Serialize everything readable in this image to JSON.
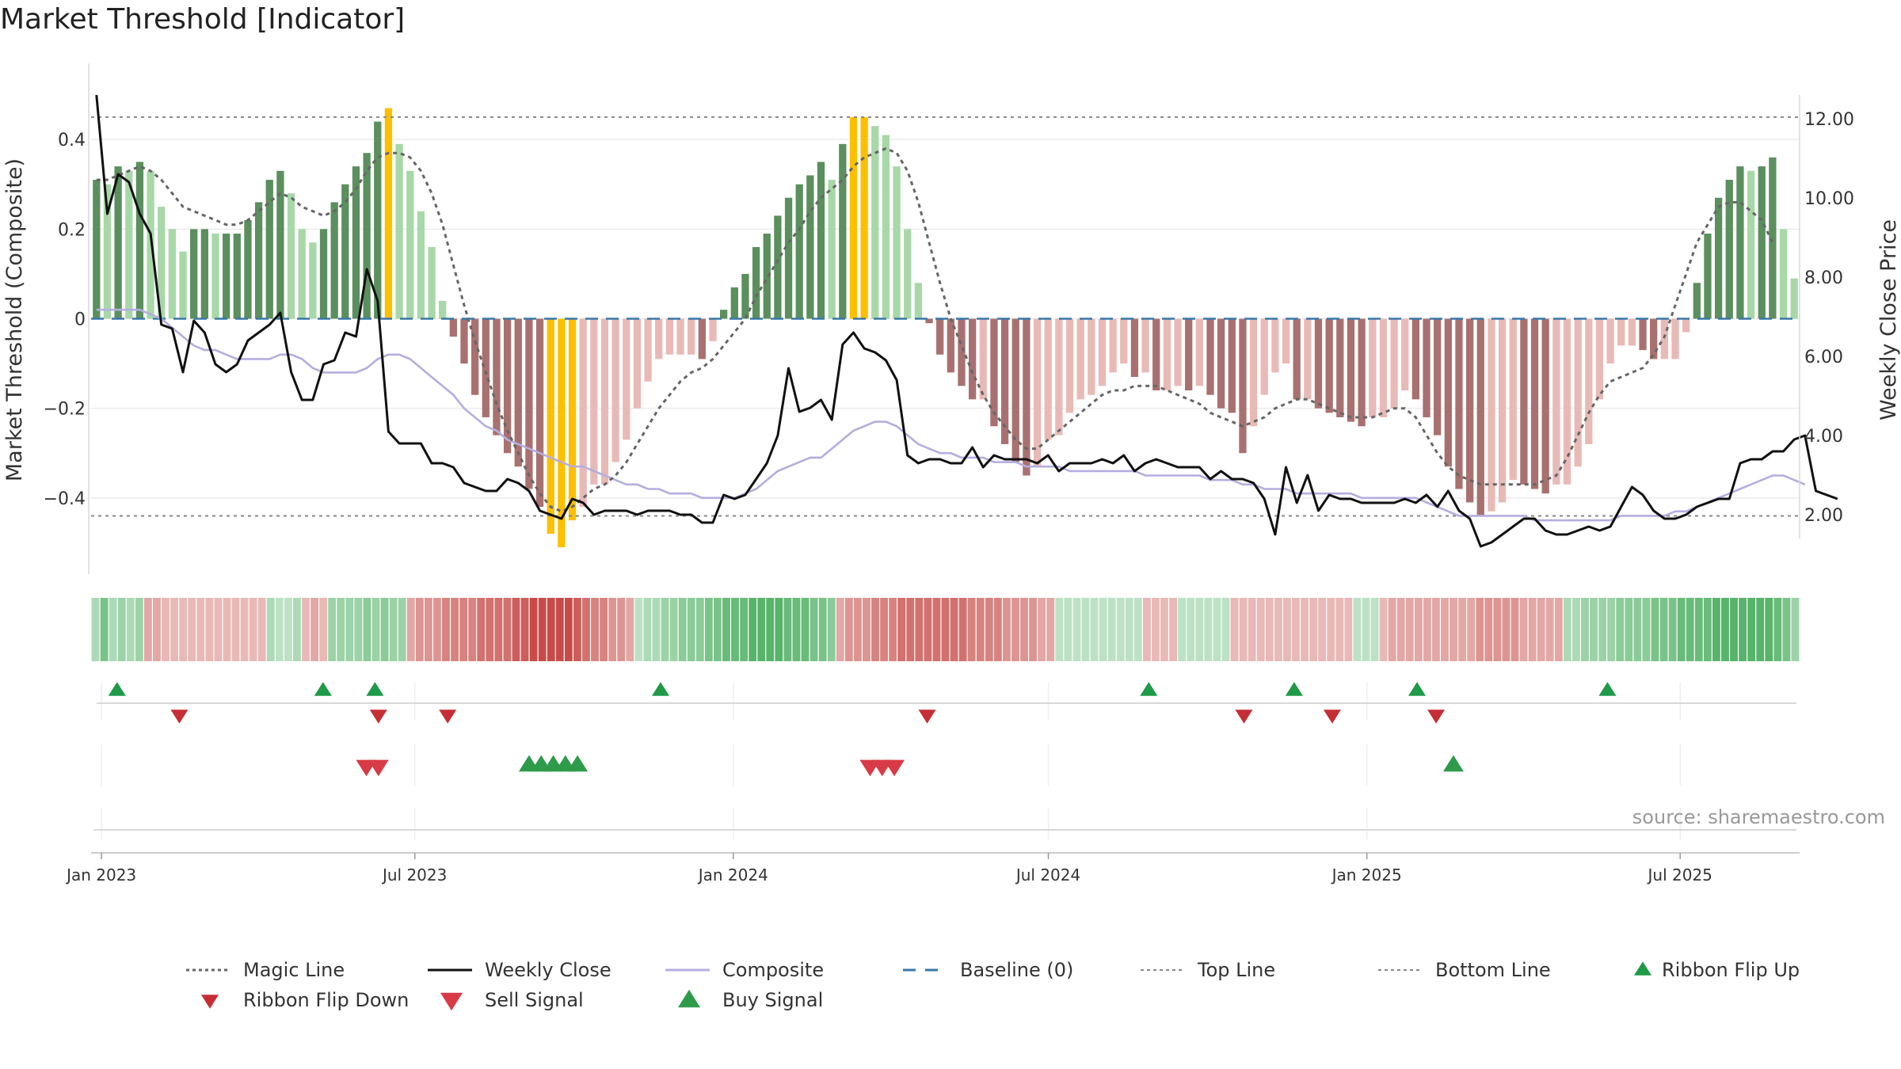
{
  "title": "Market Threshold [Indicator]",
  "source": "source: sharemaestro.com",
  "colors": {
    "pos_strong": "#5b8f5e",
    "pos_weak": "#a8d8a8",
    "neg_strong": "#a8716f",
    "neg_weak": "#e8bab6",
    "extreme": "#fcc000",
    "magic": "#666666",
    "close": "#111111",
    "composite": "#b4aee0",
    "baseline": "#3a78a8",
    "ref": "#888888",
    "buy": "#2e9b4b",
    "sell": "#d93a47",
    "flip_up": "#1f9a48",
    "flip_down": "#c62e35",
    "ribbon_pos": "#4caf61",
    "ribbon_neg": "#c3413d"
  },
  "chart_data": {
    "type": "bar",
    "xlabel": "",
    "ylabel_left": "Market Threshold (Composite)",
    "ylabel_right": "Weekly Close Price",
    "x_start": "2022-12-26",
    "x_end": "2025-09-08",
    "x_ticks": [
      {
        "date": "2023-01-01",
        "label": "Jan 2023"
      },
      {
        "date": "2023-07-01",
        "label": "Jul 2023"
      },
      {
        "date": "2024-01-01",
        "label": "Jan 2024"
      },
      {
        "date": "2024-07-01",
        "label": "Jul 2024"
      },
      {
        "date": "2025-01-01",
        "label": "Jan 2025"
      },
      {
        "date": "2025-07-01",
        "label": "Jul 2025"
      }
    ],
    "ylim_left": [
      -0.57,
      0.57
    ],
    "yticks_left": [
      {
        "v": 0.4,
        "label": "0.4"
      },
      {
        "v": 0.2,
        "label": "0.2"
      },
      {
        "v": 0,
        "label": "0"
      },
      {
        "v": -0.2,
        "label": "−0.2"
      },
      {
        "v": -0.4,
        "label": "−0.4"
      }
    ],
    "ylim_right": [
      0.5,
      13.4
    ],
    "yticks_right": [
      {
        "v": 12,
        "label": "12.00"
      },
      {
        "v": 10,
        "label": "10.00"
      },
      {
        "v": 8,
        "label": "8.00"
      },
      {
        "v": 6,
        "label": "6.00"
      },
      {
        "v": 4,
        "label": "4.00"
      },
      {
        "v": 2,
        "label": "2.00"
      }
    ],
    "top_line": 0.45,
    "bottom_line": -0.44,
    "composite_bars": [
      0.31,
      0.3,
      0.34,
      0.33,
      0.35,
      0.33,
      0.25,
      0.2,
      0.15,
      0.2,
      0.2,
      0.19,
      0.19,
      0.19,
      0.22,
      0.26,
      0.31,
      0.33,
      0.28,
      0.2,
      0.17,
      0.2,
      0.26,
      0.3,
      0.34,
      0.37,
      0.44,
      0.47,
      0.39,
      0.33,
      0.24,
      0.16,
      0.04,
      -0.04,
      -0.1,
      -0.17,
      -0.22,
      -0.26,
      -0.3,
      -0.33,
      -0.38,
      -0.42,
      -0.48,
      -0.51,
      -0.45,
      -0.42,
      -0.37,
      -0.37,
      -0.32,
      -0.27,
      -0.2,
      -0.14,
      -0.09,
      -0.08,
      -0.08,
      -0.08,
      -0.09,
      -0.05,
      0.02,
      0.07,
      0.1,
      0.16,
      0.19,
      0.23,
      0.27,
      0.3,
      0.32,
      0.35,
      0.31,
      0.39,
      0.45,
      0.45,
      0.43,
      0.41,
      0.34,
      0.2,
      0.08,
      -0.01,
      -0.08,
      -0.12,
      -0.15,
      -0.18,
      -0.18,
      -0.24,
      -0.28,
      -0.32,
      -0.35,
      -0.33,
      -0.27,
      -0.26,
      -0.21,
      -0.18,
      -0.17,
      -0.15,
      -0.12,
      -0.1,
      -0.13,
      -0.12,
      -0.16,
      -0.16,
      -0.15,
      -0.16,
      -0.15,
      -0.17,
      -0.2,
      -0.21,
      -0.3,
      -0.24,
      -0.17,
      -0.12,
      -0.1,
      -0.18,
      -0.18,
      -0.2,
      -0.21,
      -0.22,
      -0.23,
      -0.24,
      -0.22,
      -0.22,
      -0.2,
      -0.16,
      -0.18,
      -0.22,
      -0.26,
      -0.33,
      -0.38,
      -0.41,
      -0.44,
      -0.43,
      -0.41,
      -0.36,
      -0.37,
      -0.38,
      -0.39,
      -0.37,
      -0.37,
      -0.33,
      -0.28,
      -0.18,
      -0.1,
      -0.06,
      -0.06,
      -0.07,
      -0.09,
      -0.09,
      -0.09,
      -0.03,
      0.08,
      0.19,
      0.27,
      0.31,
      0.34,
      0.33,
      0.34,
      0.36,
      0.2,
      0.09
    ],
    "magic_line": [
      0.31,
      0.31,
      0.32,
      0.33,
      0.34,
      0.33,
      0.31,
      0.28,
      0.25,
      0.24,
      0.23,
      0.22,
      0.21,
      0.21,
      0.22,
      0.24,
      0.26,
      0.28,
      0.27,
      0.25,
      0.24,
      0.23,
      0.24,
      0.26,
      0.29,
      0.33,
      0.36,
      0.37,
      0.37,
      0.36,
      0.33,
      0.28,
      0.21,
      0.12,
      0.03,
      -0.05,
      -0.12,
      -0.19,
      -0.25,
      -0.3,
      -0.35,
      -0.39,
      -0.42,
      -0.43,
      -0.42,
      -0.4,
      -0.38,
      -0.37,
      -0.35,
      -0.32,
      -0.28,
      -0.24,
      -0.2,
      -0.17,
      -0.14,
      -0.12,
      -0.11,
      -0.09,
      -0.06,
      -0.03,
      0.0,
      0.05,
      0.09,
      0.13,
      0.17,
      0.2,
      0.24,
      0.27,
      0.29,
      0.31,
      0.34,
      0.36,
      0.37,
      0.38,
      0.37,
      0.33,
      0.26,
      0.17,
      0.08,
      0.0,
      -0.06,
      -0.12,
      -0.17,
      -0.21,
      -0.24,
      -0.27,
      -0.29,
      -0.29,
      -0.27,
      -0.25,
      -0.23,
      -0.21,
      -0.19,
      -0.17,
      -0.16,
      -0.16,
      -0.15,
      -0.15,
      -0.15,
      -0.16,
      -0.17,
      -0.18,
      -0.19,
      -0.21,
      -0.22,
      -0.23,
      -0.24,
      -0.23,
      -0.22,
      -0.2,
      -0.19,
      -0.18,
      -0.18,
      -0.19,
      -0.2,
      -0.21,
      -0.22,
      -0.22,
      -0.22,
      -0.21,
      -0.2,
      -0.2,
      -0.22,
      -0.26,
      -0.3,
      -0.33,
      -0.35,
      -0.36,
      -0.37,
      -0.37,
      -0.37,
      -0.37,
      -0.37,
      -0.37,
      -0.36,
      -0.35,
      -0.31,
      -0.26,
      -0.21,
      -0.17,
      -0.14,
      -0.13,
      -0.12,
      -0.11,
      -0.08,
      -0.04,
      0.03,
      0.1,
      0.17,
      0.21,
      0.25,
      0.26,
      0.26,
      0.24,
      0.22,
      0.17
    ],
    "composite_line": [
      0.02,
      0.02,
      0.02,
      0.02,
      0.02,
      0.01,
      0.0,
      -0.02,
      -0.04,
      -0.06,
      -0.07,
      -0.07,
      -0.08,
      -0.09,
      -0.09,
      -0.09,
      -0.09,
      -0.08,
      -0.08,
      -0.09,
      -0.11,
      -0.12,
      -0.12,
      -0.12,
      -0.12,
      -0.11,
      -0.09,
      -0.08,
      -0.08,
      -0.09,
      -0.11,
      -0.13,
      -0.15,
      -0.17,
      -0.2,
      -0.22,
      -0.24,
      -0.25,
      -0.27,
      -0.28,
      -0.29,
      -0.3,
      -0.31,
      -0.32,
      -0.33,
      -0.33,
      -0.34,
      -0.35,
      -0.36,
      -0.37,
      -0.37,
      -0.38,
      -0.38,
      -0.39,
      -0.39,
      -0.39,
      -0.4,
      -0.4,
      -0.4,
      -0.4,
      -0.39,
      -0.38,
      -0.36,
      -0.34,
      -0.33,
      -0.32,
      -0.31,
      -0.31,
      -0.29,
      -0.27,
      -0.25,
      -0.24,
      -0.23,
      -0.23,
      -0.24,
      -0.26,
      -0.28,
      -0.29,
      -0.3,
      -0.3,
      -0.31,
      -0.31,
      -0.31,
      -0.32,
      -0.32,
      -0.32,
      -0.33,
      -0.33,
      -0.33,
      -0.33,
      -0.34,
      -0.34,
      -0.34,
      -0.34,
      -0.34,
      -0.34,
      -0.34,
      -0.35,
      -0.35,
      -0.35,
      -0.35,
      -0.35,
      -0.35,
      -0.36,
      -0.36,
      -0.36,
      -0.37,
      -0.37,
      -0.38,
      -0.38,
      -0.38,
      -0.39,
      -0.39,
      -0.39,
      -0.39,
      -0.39,
      -0.39,
      -0.4,
      -0.4,
      -0.4,
      -0.4,
      -0.4,
      -0.4,
      -0.41,
      -0.42,
      -0.43,
      -0.44,
      -0.44,
      -0.44,
      -0.44,
      -0.44,
      -0.44,
      -0.44,
      -0.45,
      -0.45,
      -0.45,
      -0.45,
      -0.45,
      -0.45,
      -0.45,
      -0.45,
      -0.44,
      -0.44,
      -0.44,
      -0.44,
      -0.44,
      -0.43,
      -0.43,
      -0.42,
      -0.41,
      -0.4,
      -0.39,
      -0.38,
      -0.37,
      -0.36,
      -0.35,
      -0.35,
      -0.36,
      -0.37
    ],
    "weekly_close": [
      12.6,
      9.6,
      10.6,
      10.4,
      9.6,
      9.1,
      6.8,
      6.7,
      5.6,
      6.9,
      6.6,
      5.8,
      5.6,
      5.8,
      6.4,
      6.6,
      6.8,
      7.1,
      5.6,
      4.9,
      4.9,
      5.8,
      5.9,
      6.6,
      6.5,
      8.2,
      7.4,
      4.1,
      3.8,
      3.8,
      3.8,
      3.3,
      3.3,
      3.2,
      2.8,
      2.7,
      2.6,
      2.6,
      2.9,
      2.8,
      2.6,
      2.1,
      2.0,
      1.9,
      2.4,
      2.3,
      2.0,
      2.1,
      2.1,
      2.1,
      2.0,
      2.1,
      2.1,
      2.1,
      2.0,
      2.0,
      1.8,
      1.8,
      2.5,
      2.4,
      2.5,
      2.9,
      3.3,
      4.0,
      5.7,
      4.6,
      4.7,
      4.9,
      4.4,
      6.3,
      6.6,
      6.2,
      6.1,
      5.9,
      5.4,
      3.5,
      3.3,
      3.4,
      3.4,
      3.3,
      3.3,
      3.7,
      3.2,
      3.5,
      3.4,
      3.4,
      3.4,
      3.3,
      3.5,
      3.1,
      3.3,
      3.3,
      3.3,
      3.4,
      3.3,
      3.5,
      3.1,
      3.3,
      3.4,
      3.3,
      3.2,
      3.2,
      3.2,
      2.9,
      3.1,
      2.9,
      2.9,
      2.8,
      2.4,
      1.5,
      3.2,
      2.3,
      3.0,
      2.1,
      2.5,
      2.4,
      2.4,
      2.3,
      2.3,
      2.3,
      2.3,
      2.4,
      2.3,
      2.5,
      2.2,
      2.6,
      2.1,
      1.9,
      1.2,
      1.3,
      1.5,
      1.7,
      1.9,
      1.9,
      1.6,
      1.5,
      1.5,
      1.6,
      1.7,
      1.6,
      1.7,
      2.2,
      2.7,
      2.5,
      2.1,
      1.9,
      1.9,
      2.0,
      2.2,
      2.3,
      2.4,
      2.4,
      3.3,
      3.4,
      3.4,
      3.6,
      3.6,
      3.9,
      4.0,
      2.6,
      2.5,
      2.4
    ],
    "ribbon": [
      0.3,
      0.6,
      0.3,
      0.4,
      0.3,
      0.4,
      -0.3,
      -0.3,
      -0.2,
      -0.2,
      -0.2,
      -0.2,
      -0.2,
      -0.2,
      -0.2,
      -0.2,
      -0.2,
      -0.2,
      -0.2,
      -0.2,
      0.3,
      0.2,
      0.2,
      0.3,
      -0.2,
      -0.3,
      -0.2,
      0.4,
      0.4,
      0.4,
      0.4,
      0.5,
      0.4,
      0.5,
      0.4,
      0.4,
      -0.3,
      -0.4,
      -0.4,
      -0.4,
      -0.5,
      -0.5,
      -0.5,
      -0.5,
      -0.6,
      -0.6,
      -0.6,
      -0.6,
      -0.7,
      -0.7,
      -0.8,
      -0.8,
      -0.8,
      -0.8,
      -0.8,
      -0.7,
      -0.6,
      -0.5,
      -0.5,
      -0.4,
      -0.4,
      -0.3,
      0.2,
      0.3,
      0.3,
      0.4,
      0.4,
      0.5,
      0.5,
      0.5,
      0.6,
      0.6,
      0.7,
      0.7,
      0.7,
      0.8,
      0.8,
      0.8,
      0.8,
      0.7,
      0.7,
      0.7,
      0.6,
      0.6,
      0.5,
      -0.3,
      -0.4,
      -0.4,
      -0.4,
      -0.5,
      -0.5,
      -0.5,
      -0.6,
      -0.6,
      -0.6,
      -0.6,
      -0.6,
      -0.6,
      -0.6,
      -0.6,
      -0.5,
      -0.5,
      -0.5,
      -0.5,
      -0.4,
      -0.4,
      -0.4,
      -0.4,
      -0.3,
      -0.3,
      0.2,
      0.2,
      0.2,
      0.2,
      0.2,
      0.2,
      0.2,
      0.2,
      0.2,
      0.2,
      -0.2,
      -0.2,
      -0.2,
      -0.2,
      0.2,
      0.2,
      0.2,
      0.2,
      0.2,
      0.2,
      -0.2,
      -0.2,
      -0.2,
      -0.2,
      -0.2,
      -0.2,
      -0.2,
      -0.2,
      -0.2,
      -0.2,
      -0.2,
      -0.2,
      -0.2,
      -0.2,
      0.2,
      0.2,
      0.2,
      -0.2,
      -0.3,
      -0.3,
      -0.3,
      -0.3,
      -0.3,
      -0.3,
      -0.3,
      -0.3,
      -0.3,
      -0.3,
      -0.4,
      -0.4,
      -0.4,
      -0.4,
      -0.4,
      -0.3,
      -0.3,
      -0.3,
      -0.3,
      -0.3,
      0.3,
      0.3,
      0.4,
      0.4,
      0.4,
      0.4,
      0.5,
      0.5,
      0.5,
      0.5,
      0.6,
      0.6,
      0.6,
      0.7,
      0.7,
      0.7,
      0.7,
      0.8,
      0.8,
      0.8,
      0.8,
      0.8,
      0.8,
      0.8,
      0.7,
      0.6,
      0.4
    ],
    "ribbon_flip_up": [
      "2023-01-10",
      "2023-05-09",
      "2023-06-08",
      "2023-11-20",
      "2024-08-28",
      "2024-11-20",
      "2025-01-30",
      "2025-05-20"
    ],
    "ribbon_flip_down": [
      "2023-02-15",
      "2023-06-10",
      "2023-07-20",
      "2024-04-22",
      "2024-10-22",
      "2024-12-12",
      "2025-02-10"
    ],
    "sell_signal": [
      "2023-06-03",
      "2023-06-10",
      "2024-03-20",
      "2024-03-27",
      "2024-04-03"
    ],
    "buy_signal": [
      "2023-09-05",
      "2023-09-12",
      "2023-09-19",
      "2023-09-26",
      "2023-10-03",
      "2025-02-20"
    ],
    "legend": [
      {
        "key": "magic",
        "label": "Magic Line"
      },
      {
        "key": "close",
        "label": "Weekly Close"
      },
      {
        "key": "composite",
        "label": "Composite"
      },
      {
        "key": "baseline",
        "label": "Baseline (0)"
      },
      {
        "key": "top",
        "label": "Top Line"
      },
      {
        "key": "bottom",
        "label": "Bottom Line"
      },
      {
        "key": "flip_up",
        "label": "Ribbon Flip Up"
      },
      {
        "key": "flip_down",
        "label": "Ribbon Flip Down"
      },
      {
        "key": "sell",
        "label": "Sell Signal"
      },
      {
        "key": "buy",
        "label": "Buy Signal"
      }
    ],
    "legend_position": "bottom"
  }
}
